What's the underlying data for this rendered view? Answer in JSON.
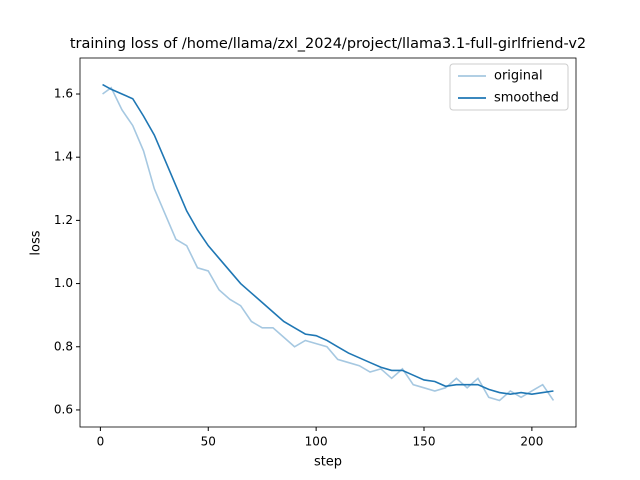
{
  "chart_data": {
    "type": "line",
    "title": "training loss of /home/llama/zxl_2024/project/llama3.1-full-girlfriend-v2",
    "xlabel": "step",
    "ylabel": "loss",
    "x": [
      1,
      5,
      10,
      15,
      20,
      25,
      30,
      35,
      40,
      45,
      50,
      55,
      60,
      65,
      70,
      75,
      80,
      85,
      90,
      95,
      100,
      105,
      110,
      115,
      120,
      125,
      130,
      135,
      140,
      145,
      150,
      155,
      160,
      165,
      170,
      175,
      180,
      185,
      190,
      195,
      200,
      205,
      210
    ],
    "series": [
      {
        "name": "original",
        "color": "#a6c8e1",
        "values": [
          1.6,
          1.62,
          1.55,
          1.5,
          1.42,
          1.3,
          1.22,
          1.14,
          1.12,
          1.05,
          1.04,
          0.98,
          0.95,
          0.93,
          0.88,
          0.86,
          0.86,
          0.83,
          0.8,
          0.82,
          0.81,
          0.8,
          0.76,
          0.75,
          0.74,
          0.72,
          0.73,
          0.7,
          0.73,
          0.68,
          0.67,
          0.66,
          0.67,
          0.7,
          0.67,
          0.7,
          0.64,
          0.63,
          0.66,
          0.64,
          0.66,
          0.68,
          0.63
        ]
      },
      {
        "name": "smoothed",
        "color": "#1f77b4",
        "values": [
          1.63,
          1.615,
          1.6,
          1.585,
          1.53,
          1.47,
          1.39,
          1.31,
          1.23,
          1.17,
          1.12,
          1.08,
          1.04,
          1.0,
          0.97,
          0.94,
          0.91,
          0.88,
          0.86,
          0.84,
          0.835,
          0.82,
          0.8,
          0.78,
          0.765,
          0.75,
          0.735,
          0.725,
          0.725,
          0.71,
          0.695,
          0.69,
          0.675,
          0.68,
          0.68,
          0.68,
          0.665,
          0.655,
          0.65,
          0.655,
          0.65,
          0.655,
          0.66
        ]
      }
    ],
    "xlim": [
      -9.45,
      220.45
    ],
    "ylim": [
      0.546,
      1.714
    ],
    "xticks": [
      0,
      50,
      100,
      150,
      200
    ],
    "yticks": [
      0.6,
      0.8,
      {
        "value": 1.0,
        "label": "1.0"
      },
      1.2,
      1.4,
      1.6
    ],
    "legend": "upper right"
  }
}
